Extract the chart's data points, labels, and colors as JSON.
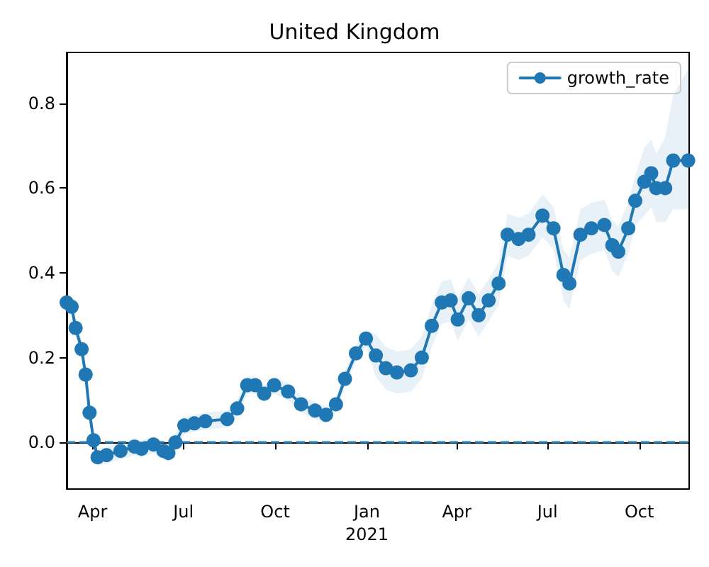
{
  "chart_data": {
    "type": "line",
    "title": "United Kingdom",
    "x": [
      "2020-03-06",
      "2020-03-11",
      "2020-03-15",
      "2020-03-21",
      "2020-03-25",
      "2020-03-29",
      "2020-04-02",
      "2020-04-06",
      "2020-04-15",
      "2020-04-29",
      "2020-05-13",
      "2020-05-20",
      "2020-06-01",
      "2020-06-11",
      "2020-06-16",
      "2020-06-23",
      "2020-07-02",
      "2020-07-12",
      "2020-07-23",
      "2020-08-14",
      "2020-08-24",
      "2020-09-03",
      "2020-09-11",
      "2020-09-20",
      "2020-09-30",
      "2020-10-14",
      "2020-10-27",
      "2020-11-10",
      "2020-11-21",
      "2020-12-01",
      "2020-12-10",
      "2020-12-21",
      "2020-12-31",
      "2021-01-10",
      "2021-01-20",
      "2021-01-31",
      "2021-02-14",
      "2021-02-25",
      "2021-03-07",
      "2021-03-17",
      "2021-03-26",
      "2021-04-02",
      "2021-04-13",
      "2021-04-23",
      "2021-05-03",
      "2021-05-13",
      "2021-05-22",
      "2021-06-02",
      "2021-06-12",
      "2021-06-26",
      "2021-07-07",
      "2021-07-17",
      "2021-07-23",
      "2021-08-03",
      "2021-08-14",
      "2021-08-27",
      "2021-09-04",
      "2021-09-10",
      "2021-09-20",
      "2021-09-27",
      "2021-10-06",
      "2021-10-13",
      "2021-10-18",
      "2021-10-27",
      "2021-11-04",
      "2021-11-19"
    ],
    "series": [
      {
        "name": "growth_rate",
        "color": "#1f77b4",
        "values": [
          0.33,
          0.32,
          0.27,
          0.22,
          0.16,
          0.07,
          0.005,
          -0.035,
          -0.03,
          -0.02,
          -0.01,
          -0.015,
          -0.005,
          -0.02,
          -0.025,
          0.0,
          0.04,
          0.045,
          0.05,
          0.055,
          0.08,
          0.135,
          0.135,
          0.115,
          0.135,
          0.12,
          0.09,
          0.075,
          0.065,
          0.09,
          0.15,
          0.21,
          0.245,
          0.205,
          0.175,
          0.165,
          0.17,
          0.2,
          0.275,
          0.33,
          0.335,
          0.29,
          0.34,
          0.3,
          0.335,
          0.375,
          0.49,
          0.48,
          0.49,
          0.535,
          0.505,
          0.395,
          0.375,
          0.49,
          0.505,
          0.513,
          0.465,
          0.45,
          0.505,
          0.57,
          0.615,
          0.635,
          0.6,
          0.6,
          0.665,
          0.665
        ],
        "lower": [
          0.31,
          0.3,
          0.25,
          0.2,
          0.14,
          0.05,
          -0.015,
          -0.055,
          -0.05,
          -0.04,
          -0.03,
          -0.035,
          -0.025,
          -0.04,
          -0.045,
          -0.02,
          0.02,
          0.025,
          0.03,
          0.035,
          0.06,
          0.115,
          0.115,
          0.095,
          0.115,
          0.1,
          0.07,
          0.055,
          0.045,
          0.07,
          0.13,
          0.19,
          0.225,
          0.155,
          0.125,
          0.115,
          0.12,
          0.15,
          0.225,
          0.28,
          0.285,
          0.24,
          0.29,
          0.25,
          0.285,
          0.325,
          0.44,
          0.43,
          0.44,
          0.485,
          0.455,
          0.335,
          0.315,
          0.43,
          0.445,
          0.453,
          0.405,
          0.39,
          0.445,
          0.51,
          0.535,
          0.555,
          0.52,
          0.52,
          0.55,
          0.55
        ],
        "upper": [
          0.35,
          0.34,
          0.29,
          0.24,
          0.18,
          0.09,
          0.025,
          -0.015,
          -0.01,
          0.0,
          0.01,
          0.005,
          0.015,
          0.0,
          -0.005,
          0.02,
          0.06,
          0.065,
          0.07,
          0.075,
          0.1,
          0.155,
          0.155,
          0.135,
          0.155,
          0.14,
          0.11,
          0.095,
          0.085,
          0.11,
          0.17,
          0.23,
          0.265,
          0.255,
          0.225,
          0.215,
          0.22,
          0.25,
          0.325,
          0.38,
          0.385,
          0.34,
          0.39,
          0.35,
          0.385,
          0.425,
          0.54,
          0.53,
          0.54,
          0.585,
          0.555,
          0.455,
          0.435,
          0.55,
          0.565,
          0.573,
          0.525,
          0.51,
          0.565,
          0.63,
          0.695,
          0.715,
          0.68,
          0.72,
          0.82,
          0.88
        ]
      }
    ],
    "xlim": [
      "2020-03-06",
      "2021-11-20"
    ],
    "xticks": [
      {
        "value": "2020-04-01",
        "label": "Apr"
      },
      {
        "value": "2020-07-01",
        "label": "Jul"
      },
      {
        "value": "2020-10-01",
        "label": "Oct"
      },
      {
        "value": "2021-01-01",
        "label": "Jan\n2021"
      },
      {
        "value": "2021-04-01",
        "label": "Apr"
      },
      {
        "value": "2021-07-01",
        "label": "Jul"
      },
      {
        "value": "2021-10-01",
        "label": "Oct"
      }
    ],
    "ylim": [
      -0.11,
      0.92
    ],
    "yticks": [
      {
        "value": 0,
        "label": "0.0"
      },
      {
        "value": 0.2,
        "label": "0.2"
      },
      {
        "value": 0.4,
        "label": "0.4"
      },
      {
        "value": 0.6,
        "label": "0.6"
      },
      {
        "value": 0.8,
        "label": "0.8"
      }
    ],
    "ref_lines": [
      {
        "axis": "y",
        "value": 0,
        "color": "#1f77b4",
        "line_style": "dashed"
      }
    ],
    "legend": "top right",
    "marker": "circle",
    "line_style": "solid",
    "grid": false
  }
}
